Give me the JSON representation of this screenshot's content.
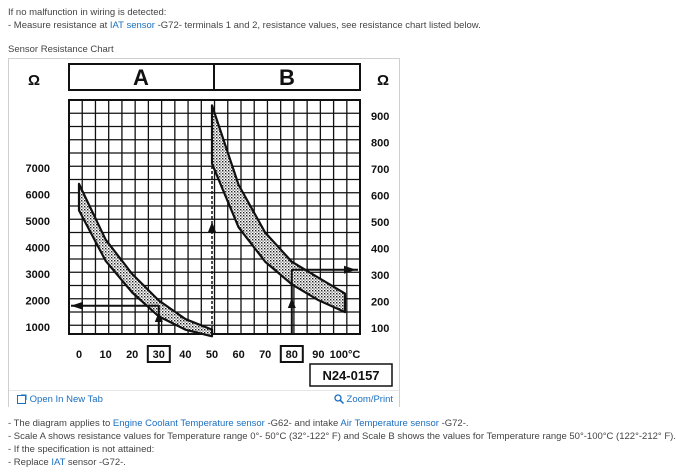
{
  "intro": {
    "heading": "If no malfunction in wiring is detected:",
    "step_prefix": "- Measure resistance at ",
    "step_link": "IAT sensor",
    "step_suffix": " -G72- terminals 1 and 2, resistance values, see resistance chart listed below."
  },
  "chart_title": "Sensor Resistance Chart",
  "figure_toolbar": {
    "open_tab_label": "Open In New Tab",
    "zoom_label": "Zoom/Print",
    "open_icon": "open-new-tab-icon",
    "zoom_icon": "magnifier-icon"
  },
  "notes": {
    "n1_prefix": "- The diagram applies to ",
    "n1_link1": "Engine Coolant Temperature sensor",
    "n1_mid": " -G62- and intake ",
    "n1_link2": "Air Temperature sensor",
    "n1_suffix": " -G72-.",
    "n2": "- Scale A shows resistance values for Temperature range 0°- 50°C (32°-122° F) and Scale B shows the values for Temperature range 50°-100°C (122°-212° F).",
    "n3": "- If the specification is not attained:",
    "n4_prefix": "- Replace ",
    "n4_link": "IAT",
    "n4_suffix": " sensor -G72-."
  },
  "chart_data": {
    "type": "line",
    "figure_id": "N24-0157",
    "unit_symbol": "Ω",
    "scale_a": {
      "label": "A",
      "y_ticks": [
        "7000",
        "6000",
        "5000",
        "4000",
        "3000",
        "2000",
        "1000"
      ],
      "x_ticks": [
        "0",
        "10",
        "20",
        "30",
        "40",
        "50"
      ],
      "series_upper": {
        "x": [
          0,
          10,
          20,
          30,
          40,
          50
        ],
        "y": [
          6400,
          4300,
          3000,
          2000,
          1300,
          900
        ]
      },
      "series_lower": {
        "x": [
          0,
          10,
          20,
          30,
          40,
          50
        ],
        "y": [
          5400,
          3500,
          2300,
          1400,
          900,
          650
        ]
      },
      "highlight_x": "30",
      "reading_arrow_y": 1800
    },
    "scale_b": {
      "label": "B",
      "y_ticks": [
        "900",
        "800",
        "700",
        "600",
        "500",
        "400",
        "300",
        "200",
        "100"
      ],
      "x_ticks": [
        "50",
        "60",
        "70",
        "80",
        "90",
        "100°C"
      ],
      "series_upper": {
        "x": [
          50,
          60,
          70,
          80,
          90,
          100
        ],
        "y": [
          940,
          640,
          460,
          350,
          290,
          230
        ]
      },
      "series_lower": {
        "x": [
          50,
          60,
          70,
          80,
          90,
          100
        ],
        "y": [
          720,
          480,
          350,
          265,
          205,
          160
        ]
      },
      "highlight_x": "80",
      "reading_arrow_y": 320
    },
    "grid": true
  }
}
